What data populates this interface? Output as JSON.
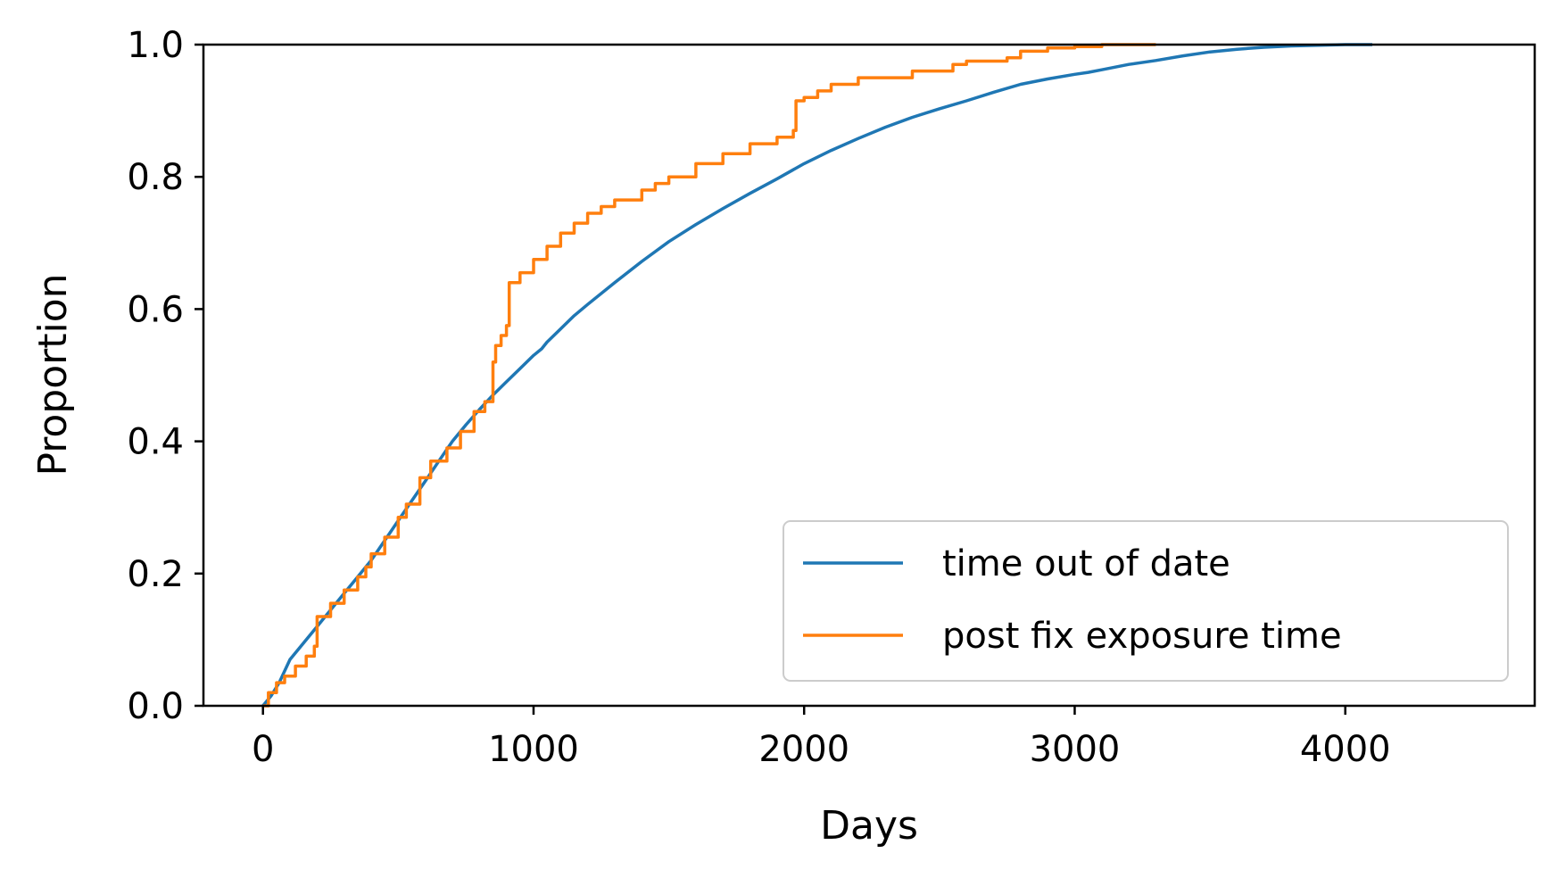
{
  "chart_data": {
    "type": "line",
    "title": "",
    "xlabel": "Days",
    "ylabel": "Proportion",
    "xlim": [
      -220,
      4700
    ],
    "ylim": [
      0.0,
      1.0
    ],
    "xticks": [
      0,
      1000,
      2000,
      3000,
      4000
    ],
    "xtick_labels": [
      "0",
      "1000",
      "2000",
      "3000",
      "4000"
    ],
    "yticks": [
      0.0,
      0.2,
      0.4,
      0.6,
      0.8,
      1.0
    ],
    "ytick_labels": [
      "0.0",
      "0.2",
      "0.4",
      "0.6",
      "0.8",
      "1.0"
    ],
    "grid": false,
    "legend_position": "lower-right",
    "series": [
      {
        "name": "time out of date",
        "color": "#1f77b4",
        "step": false,
        "x": [
          0,
          30,
          60,
          100,
          150,
          200,
          250,
          300,
          350,
          400,
          450,
          500,
          550,
          600,
          650,
          700,
          750,
          800,
          850,
          900,
          950,
          1000,
          1030,
          1050,
          1100,
          1150,
          1200,
          1300,
          1400,
          1500,
          1600,
          1700,
          1800,
          1900,
          2000,
          2100,
          2200,
          2300,
          2400,
          2500,
          2600,
          2700,
          2800,
          2900,
          3000,
          3050,
          3100,
          3200,
          3300,
          3400,
          3500,
          3600,
          3700,
          3800,
          3900,
          4000,
          4100
        ],
        "y": [
          0.0,
          0.015,
          0.035,
          0.07,
          0.095,
          0.12,
          0.145,
          0.17,
          0.195,
          0.22,
          0.25,
          0.28,
          0.31,
          0.34,
          0.37,
          0.4,
          0.425,
          0.448,
          0.47,
          0.49,
          0.51,
          0.53,
          0.54,
          0.55,
          0.57,
          0.59,
          0.607,
          0.64,
          0.672,
          0.702,
          0.728,
          0.752,
          0.775,
          0.797,
          0.82,
          0.84,
          0.858,
          0.875,
          0.89,
          0.903,
          0.915,
          0.928,
          0.94,
          0.948,
          0.955,
          0.958,
          0.962,
          0.97,
          0.976,
          0.983,
          0.989,
          0.993,
          0.996,
          0.998,
          0.999,
          1.0,
          1.0
        ]
      },
      {
        "name": "post fix exposure time",
        "color": "#ff7f0e",
        "step": true,
        "x": [
          0,
          20,
          50,
          80,
          120,
          160,
          190,
          200,
          250,
          300,
          350,
          380,
          400,
          450,
          500,
          530,
          580,
          620,
          680,
          730,
          780,
          820,
          850,
          860,
          880,
          900,
          910,
          950,
          1000,
          1050,
          1100,
          1150,
          1200,
          1250,
          1300,
          1400,
          1450,
          1500,
          1600,
          1700,
          1800,
          1900,
          1960,
          1970,
          2000,
          2050,
          2100,
          2200,
          2400,
          2550,
          2600,
          2750,
          2800,
          2900,
          3000,
          3100,
          3300
        ],
        "y": [
          0.0,
          0.02,
          0.035,
          0.045,
          0.06,
          0.075,
          0.09,
          0.135,
          0.155,
          0.175,
          0.195,
          0.21,
          0.23,
          0.255,
          0.285,
          0.305,
          0.345,
          0.37,
          0.39,
          0.415,
          0.445,
          0.46,
          0.52,
          0.545,
          0.56,
          0.575,
          0.64,
          0.655,
          0.675,
          0.695,
          0.715,
          0.73,
          0.745,
          0.755,
          0.765,
          0.78,
          0.79,
          0.8,
          0.82,
          0.835,
          0.85,
          0.86,
          0.87,
          0.915,
          0.92,
          0.93,
          0.94,
          0.95,
          0.96,
          0.97,
          0.975,
          0.98,
          0.99,
          0.995,
          0.997,
          1.0,
          1.0
        ]
      }
    ]
  }
}
